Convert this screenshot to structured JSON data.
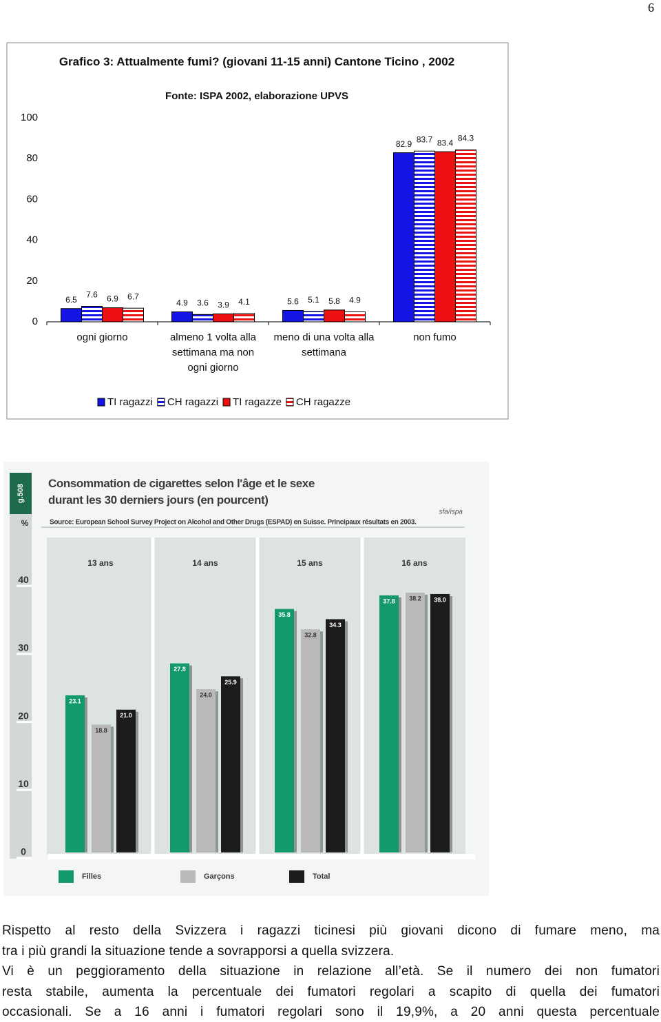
{
  "page_number": "6",
  "chart_data": [
    {
      "type": "bar",
      "title": "Grafico 3: Attualmente fumi? (giovani 11-15 anni) Cantone Ticino , 2002",
      "subtitle": "Fonte: ISPA 2002, elaborazione UPVS",
      "categories": [
        "ogni giorno",
        "almeno 1 volta alla settimana ma non ogni giorno",
        "meno di una volta alla settimana",
        "non fumo"
      ],
      "series": [
        {
          "name": "TI ragazzi",
          "color": "#1414e6",
          "values": [
            6.5,
            4.9,
            5.6,
            82.9
          ]
        },
        {
          "name": "CH ragazzi",
          "color": "#1414e6",
          "pattern": "stripes",
          "values": [
            7.6,
            3.6,
            5.1,
            83.7
          ]
        },
        {
          "name": "TI ragazze",
          "color": "#ee1111",
          "values": [
            6.9,
            3.9,
            5.8,
            83.4
          ]
        },
        {
          "name": "CH ragazze",
          "color": "#ee1111",
          "pattern": "stripes",
          "values": [
            6.7,
            4.1,
            4.9,
            84.3
          ]
        }
      ],
      "ylim": [
        0,
        100
      ],
      "yticks": [
        0,
        20,
        40,
        60,
        80,
        100
      ],
      "grid": false,
      "legend": "bottom"
    },
    {
      "type": "bar",
      "title": "Consommation de cigarettes selon l'âge et le sexe durant les 30 derniers jours (en pourcent)",
      "subtitle": "Source: European School Survey Project on Alcohol and Other Drugs (ESPAD) en Suisse. Principaux résultats en 2003.",
      "tag": "g.508",
      "credit": "sfa/ispa",
      "ylabel": "%",
      "categories": [
        "13 ans",
        "14 ans",
        "15 ans",
        "16 ans"
      ],
      "series": [
        {
          "name": "Filles",
          "color": "#149a6a",
          "values": [
            23.1,
            27.8,
            35.8,
            37.8
          ]
        },
        {
          "name": "Garçons",
          "color": "#b9b9b9",
          "values": [
            18.8,
            24.0,
            32.8,
            38.2
          ],
          "value_labels": [
            "18.8",
            "24.0",
            "32.8",
            "38.2"
          ]
        },
        {
          "name": "Total",
          "color": "#1c1c1c",
          "values": [
            21.0,
            25.9,
            34.3,
            38.0
          ],
          "value_labels": [
            "21.0",
            "25.9",
            "34.3",
            "38.0"
          ]
        }
      ],
      "ylim": [
        0,
        46
      ],
      "yticks": [
        0,
        10,
        20,
        30,
        40
      ],
      "grid": false,
      "legend": "bottom"
    }
  ],
  "paragraph": [
    "Rispetto al resto della Svizzera i ragazzi ticinesi più giovani dicono di fumare meno, ma",
    "tra i più grandi la situazione tende a sovrapporsi a quella svizzera.",
    "Vi è un peggioramento della situazione in relazione all’età. Se il numero dei non fumatori",
    "resta stabile, aumenta la percentuale dei fumatori regolari a scapito di quella dei fumatori",
    "occasionali. Se a 16 anni i fumatori regolari sono il 19,9%, a 20 anni questa percentuale"
  ]
}
